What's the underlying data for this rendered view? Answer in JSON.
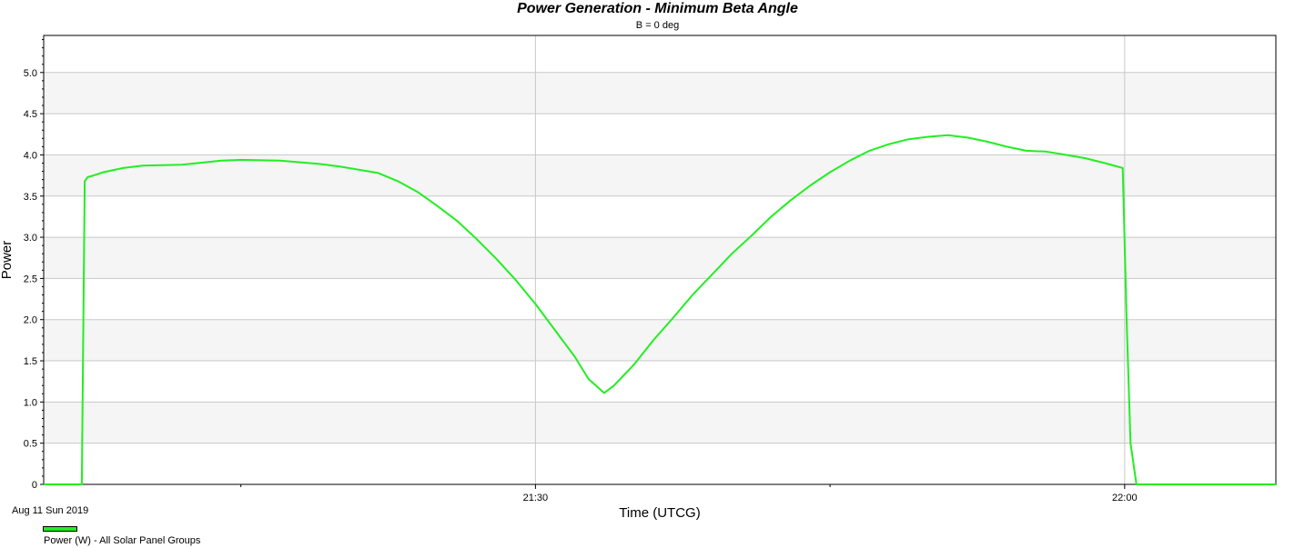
{
  "chart_data": {
    "type": "line",
    "title": "Power Generation - Minimum Beta Angle",
    "subtitle": "B = 0 deg",
    "xlabel": "Time (UTCG)",
    "ylabel": "Power",
    "x_unit": "minutes after 21:00 UTCG, Aug 11 2019",
    "xlim": [
      4.96,
      67.7
    ],
    "ylim": [
      0,
      5.45
    ],
    "yticks": [
      0,
      0.5,
      1.0,
      1.5,
      2.0,
      2.5,
      3.0,
      3.5,
      4.0,
      4.5,
      5.0
    ],
    "ytick_labels": [
      "0",
      "0.5",
      "1.0",
      "1.5",
      "2.0",
      "2.5",
      "3.0",
      "3.5",
      "4.0",
      "4.5",
      "5.0"
    ],
    "xticks": [
      30,
      60
    ],
    "xtick_labels": [
      "21:30",
      "22:00"
    ],
    "x_minor_ticks": [
      15,
      45
    ],
    "date_label": "Aug 11 Sun 2019",
    "grid": true,
    "legend_position": "bottom-left",
    "series": [
      {
        "name": "Power (W) - All Solar Panel Groups",
        "color": "#22ee22",
        "x": [
          4.96,
          6.9,
          7.05,
          7.2,
          7.5,
          8.0,
          9.0,
          10.0,
          12.0,
          14.0,
          15.0,
          17.0,
          19.0,
          20.0,
          22.0,
          23.0,
          24.0,
          25.0,
          26.0,
          27.0,
          28.0,
          29.0,
          30.0,
          31.0,
          32.0,
          32.7,
          33.5,
          34.0,
          35.0,
          36.0,
          37.0,
          38.0,
          39.0,
          40.0,
          41.0,
          42.0,
          43.0,
          44.0,
          45.0,
          46.0,
          47.0,
          48.0,
          49.0,
          50.0,
          51.0,
          52.0,
          53.0,
          54.0,
          55.0,
          56.0,
          57.0,
          58.0,
          59.0,
          59.9,
          60.1,
          60.3,
          60.6,
          62.0,
          67.7
        ],
        "y": [
          0,
          0,
          3.68,
          3.73,
          3.75,
          3.79,
          3.84,
          3.87,
          3.88,
          3.93,
          3.94,
          3.93,
          3.89,
          3.86,
          3.78,
          3.68,
          3.55,
          3.38,
          3.2,
          2.98,
          2.74,
          2.48,
          2.19,
          1.87,
          1.55,
          1.28,
          1.11,
          1.2,
          1.45,
          1.75,
          2.02,
          2.3,
          2.55,
          2.8,
          3.02,
          3.25,
          3.45,
          3.63,
          3.79,
          3.93,
          4.05,
          4.13,
          4.19,
          4.22,
          4.24,
          4.21,
          4.16,
          4.1,
          4.05,
          4.04,
          4.0,
          3.96,
          3.9,
          3.84,
          2.0,
          0.5,
          0,
          0,
          0
        ]
      }
    ]
  }
}
